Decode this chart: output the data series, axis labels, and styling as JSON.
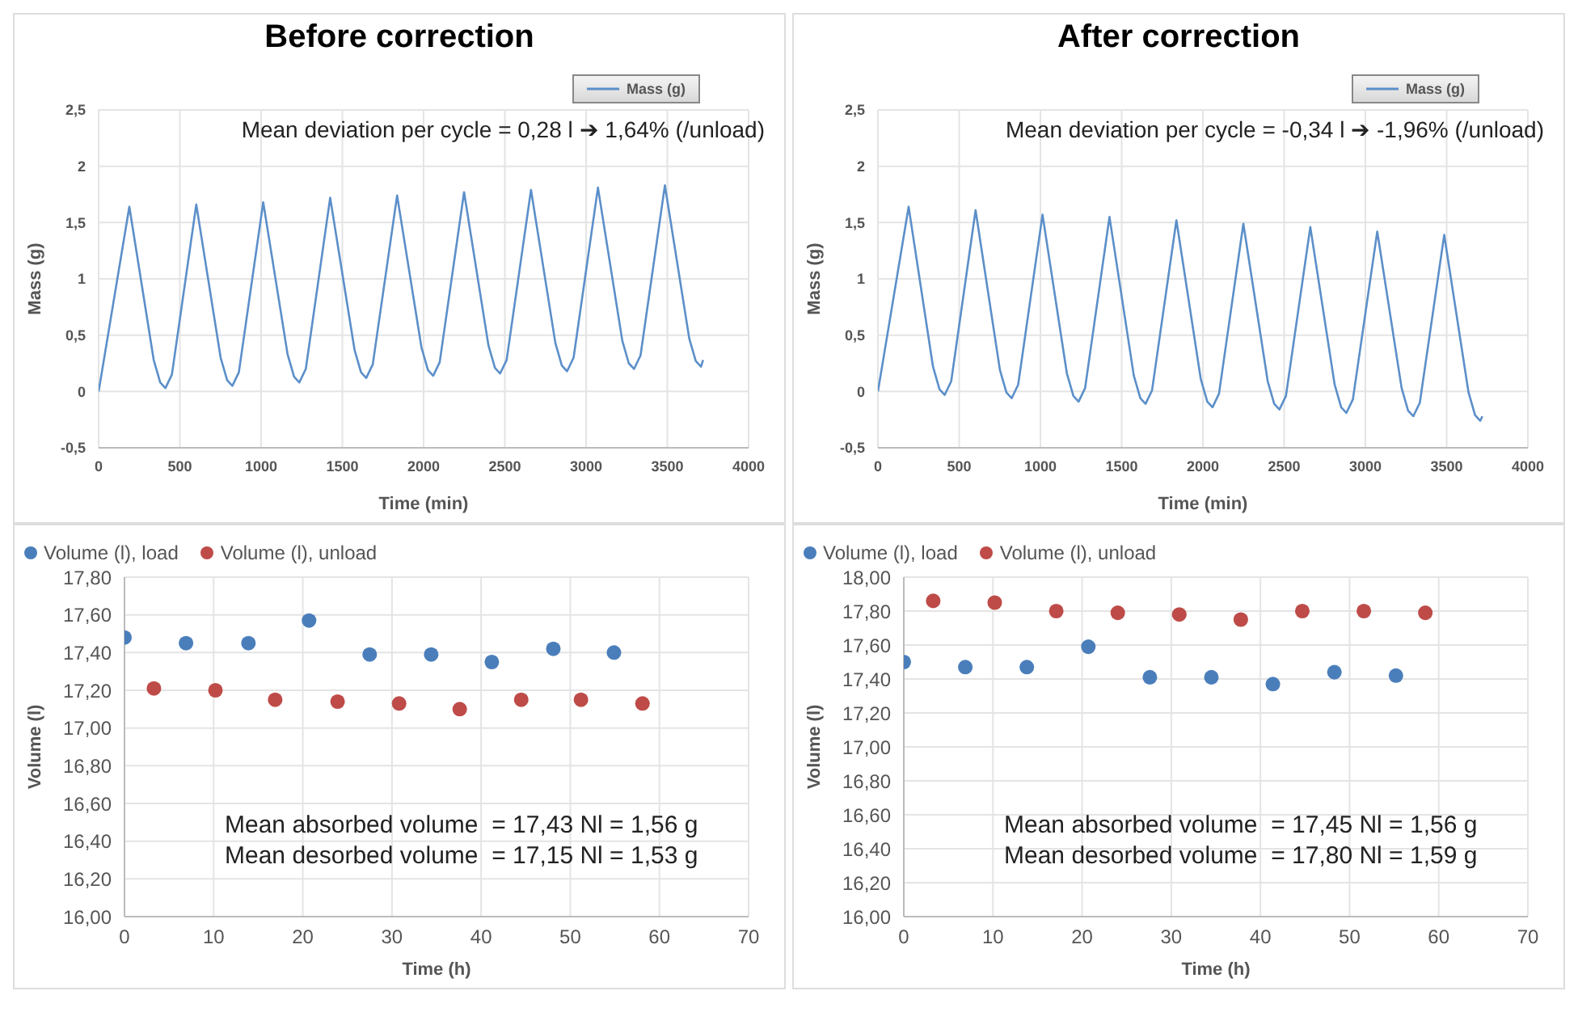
{
  "chart_data": [
    {
      "type": "line",
      "title": "Before correction",
      "xlabel": "Time (min)",
      "ylabel": "Mass (g)",
      "legend": "top right",
      "grid": true,
      "marker": "none",
      "line_style": "solid",
      "xlim": [
        0,
        4000
      ],
      "xticks": [
        0,
        500,
        1000,
        1500,
        2000,
        2500,
        3000,
        3500,
        4000
      ],
      "ylim": [
        -0.5,
        2.5
      ],
      "yticks": [
        {
          "value": -0.5,
          "label": "-0,5"
        },
        0,
        {
          "value": 0.5,
          "label": "0,5"
        },
        1,
        {
          "value": 1.5,
          "label": "1,5"
        },
        2,
        {
          "value": 2.5,
          "label": "2,5"
        }
      ],
      "annotations": [
        "Mean deviation per cycle = 0,28 l ➔ 1,64% (/unload)"
      ],
      "series": [
        {
          "name": "Mass (g)",
          "color": "#5b8fc9",
          "x": [
            0,
            189,
            339,
            379,
            411,
            451,
            601,
            751,
            791,
            823,
            863,
            1013,
            1163,
            1203,
            1235,
            1275,
            1425,
            1575,
            1615,
            1647,
            1687,
            1837,
            1987,
            2027,
            2059,
            2099,
            2249,
            2399,
            2439,
            2471,
            2511,
            2661,
            2811,
            2851,
            2883,
            2923,
            3073,
            3223,
            3263,
            3295,
            3335,
            3485,
            3635,
            3675,
            3707,
            3720
          ],
          "values": [
            0,
            1.64,
            0.28,
            0.08,
            0.03,
            0.15,
            1.66,
            0.3,
            0.1,
            0.05,
            0.17,
            1.68,
            0.33,
            0.13,
            0.08,
            0.2,
            1.72,
            0.37,
            0.17,
            0.12,
            0.24,
            1.74,
            0.39,
            0.19,
            0.14,
            0.26,
            1.77,
            0.41,
            0.21,
            0.16,
            0.28,
            1.79,
            0.43,
            0.23,
            0.18,
            0.3,
            1.81,
            0.45,
            0.25,
            0.2,
            0.32,
            1.83,
            0.47,
            0.27,
            0.22,
            0.28
          ]
        }
      ]
    },
    {
      "type": "line",
      "title": "After correction",
      "xlabel": "Time (min)",
      "ylabel": "Mass (g)",
      "legend": "top right",
      "grid": true,
      "marker": "none",
      "line_style": "solid",
      "xlim": [
        0,
        4000
      ],
      "xticks": [
        0,
        500,
        1000,
        1500,
        2000,
        2500,
        3000,
        3500,
        4000
      ],
      "ylim": [
        -0.5,
        2.5
      ],
      "yticks": [
        {
          "value": -0.5,
          "label": "-0,5"
        },
        0,
        {
          "value": 0.5,
          "label": "0,5"
        },
        1,
        {
          "value": 1.5,
          "label": "1,5"
        },
        2,
        {
          "value": 2.5,
          "label": "2,5"
        }
      ],
      "annotations": [
        "Mean deviation per cycle = -0,34 l ➔ -1,96% (/unload)"
      ],
      "series": [
        {
          "name": "Mass (g)",
          "color": "#5b8fc9",
          "x": [
            0,
            189,
            339,
            379,
            411,
            451,
            601,
            751,
            791,
            823,
            863,
            1013,
            1163,
            1203,
            1235,
            1275,
            1425,
            1575,
            1615,
            1647,
            1687,
            1837,
            1987,
            2027,
            2059,
            2099,
            2249,
            2399,
            2439,
            2471,
            2511,
            2661,
            2811,
            2851,
            2883,
            2923,
            3073,
            3223,
            3263,
            3295,
            3335,
            3485,
            3635,
            3675,
            3707,
            3720
          ],
          "values": [
            0,
            1.64,
            0.22,
            0.02,
            -0.03,
            0.09,
            1.61,
            0.19,
            -0.01,
            -0.06,
            0.06,
            1.57,
            0.16,
            -0.04,
            -0.09,
            0.03,
            1.55,
            0.14,
            -0.06,
            -0.11,
            0.01,
            1.52,
            0.11,
            -0.09,
            -0.14,
            -0.02,
            1.49,
            0.09,
            -0.11,
            -0.16,
            -0.04,
            1.46,
            0.06,
            -0.14,
            -0.19,
            -0.07,
            1.42,
            0.03,
            -0.17,
            -0.22,
            -0.1,
            1.39,
            -0.01,
            -0.21,
            -0.26,
            -0.22
          ]
        }
      ]
    },
    {
      "type": "scatter",
      "xlabel": "Time (h)",
      "ylabel": "Volume (l)",
      "legend": "top",
      "grid": true,
      "marker": "circle",
      "xlim": [
        0,
        70
      ],
      "xticks": [
        0,
        10,
        20,
        30,
        40,
        50,
        60,
        70
      ],
      "ylim": [
        16,
        17.8
      ],
      "yticks": [
        {
          "value": 16,
          "label": "16,00"
        },
        {
          "value": 16.2,
          "label": "16,20"
        },
        {
          "value": 16.4,
          "label": "16,40"
        },
        {
          "value": 16.6,
          "label": "16,60"
        },
        {
          "value": 16.8,
          "label": "16,80"
        },
        {
          "value": 17,
          "label": "17,00"
        },
        {
          "value": 17.2,
          "label": "17,20"
        },
        {
          "value": 17.4,
          "label": "17,40"
        },
        {
          "value": 17.6,
          "label": "17,60"
        },
        {
          "value": 17.8,
          "label": "17,80"
        }
      ],
      "annotations": [
        "Mean absorbed volume  = 17,43 Nl = 1,56 g",
        "Mean desorbed volume  = 17,15 Nl = 1,53 g"
      ],
      "series": [
        {
          "name": "Volume (l), load",
          "color": "#4a7ebb",
          "x": [
            0,
            6.9,
            13.9,
            20.7,
            27.5,
            34.4,
            41.2,
            48.1,
            54.9
          ],
          "values": [
            17.48,
            17.45,
            17.45,
            17.57,
            17.39,
            17.39,
            17.35,
            17.42,
            17.4
          ]
        },
        {
          "name": "Volume (l), unload",
          "color": "#be4b48",
          "x": [
            3.3,
            10.2,
            16.9,
            23.9,
            30.8,
            37.6,
            44.5,
            51.2,
            58.1
          ],
          "values": [
            17.21,
            17.2,
            17.15,
            17.14,
            17.13,
            17.1,
            17.15,
            17.15,
            17.13
          ]
        }
      ]
    },
    {
      "type": "scatter",
      "xlabel": "Time (h)",
      "ylabel": "Volume (l)",
      "legend": "top",
      "grid": true,
      "marker": "circle",
      "xlim": [
        0,
        70
      ],
      "xticks": [
        0,
        10,
        20,
        30,
        40,
        50,
        60,
        70
      ],
      "ylim": [
        16,
        18
      ],
      "yticks": [
        {
          "value": 16,
          "label": "16,00"
        },
        {
          "value": 16.2,
          "label": "16,20"
        },
        {
          "value": 16.4,
          "label": "16,40"
        },
        {
          "value": 16.6,
          "label": "16,60"
        },
        {
          "value": 16.8,
          "label": "16,80"
        },
        {
          "value": 17,
          "label": "17,00"
        },
        {
          "value": 17.2,
          "label": "17,20"
        },
        {
          "value": 17.4,
          "label": "17,40"
        },
        {
          "value": 17.6,
          "label": "17,60"
        },
        {
          "value": 17.8,
          "label": "17,80"
        },
        {
          "value": 18,
          "label": "18,00"
        }
      ],
      "annotations": [
        "Mean absorbed volume  = 17,45 Nl = 1,56 g",
        "Mean desorbed volume  = 17,80 Nl = 1,59 g"
      ],
      "series": [
        {
          "name": "Volume (l), load",
          "color": "#4a7ebb",
          "x": [
            0,
            6.9,
            13.8,
            20.7,
            27.6,
            34.5,
            41.4,
            48.3,
            55.2
          ],
          "values": [
            17.5,
            17.47,
            17.47,
            17.59,
            17.41,
            17.41,
            17.37,
            17.44,
            17.42
          ]
        },
        {
          "name": "Volume (l), unload",
          "color": "#be4b48",
          "x": [
            3.3,
            10.2,
            17.1,
            24,
            30.9,
            37.8,
            44.7,
            51.6,
            58.5
          ],
          "values": [
            17.86,
            17.85,
            17.8,
            17.79,
            17.78,
            17.75,
            17.8,
            17.8,
            17.79
          ]
        }
      ]
    }
  ]
}
